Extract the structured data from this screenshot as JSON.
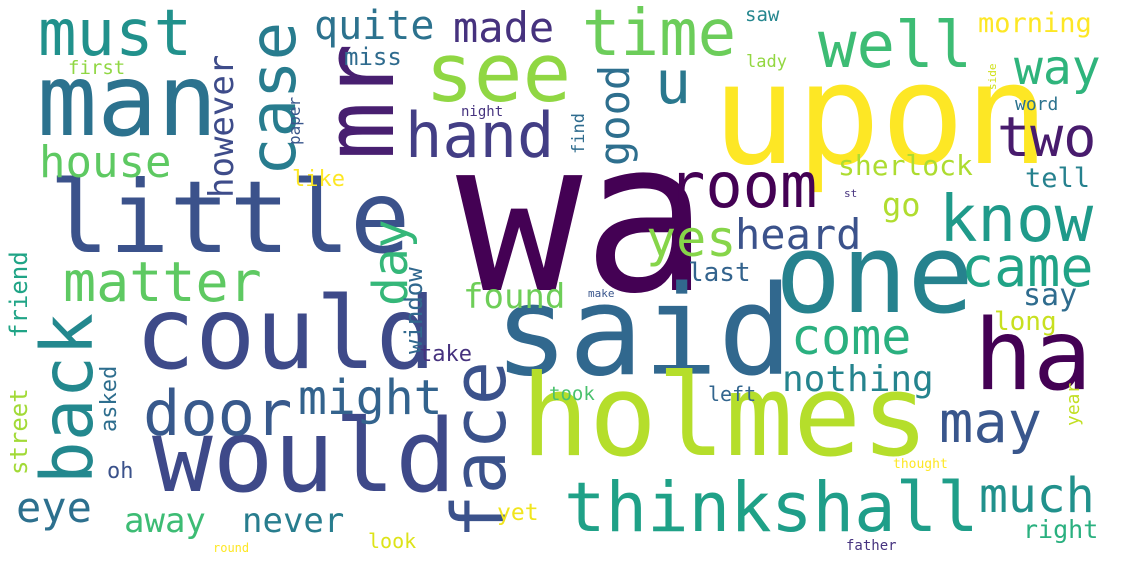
{
  "word_cloud": {
    "colormap": "viridis",
    "background": "#ffffff",
    "words": [
      {
        "text": "wa",
        "color": "#440154"
      },
      {
        "text": "upon",
        "color": "#fde725"
      },
      {
        "text": "said",
        "color": "#31688e"
      },
      {
        "text": "holmes",
        "color": "#b5de2b"
      },
      {
        "text": "one",
        "color": "#26828e"
      },
      {
        "text": "could",
        "color": "#3e4a89"
      },
      {
        "text": "would",
        "color": "#3e4989"
      },
      {
        "text": "man",
        "color": "#2c728e"
      },
      {
        "text": "little",
        "color": "#3b528b"
      },
      {
        "text": "mr",
        "color": "#481f70"
      },
      {
        "text": "ha",
        "color": "#440154"
      },
      {
        "text": "see",
        "color": "#90d743"
      },
      {
        "text": "think",
        "color": "#1fa187"
      },
      {
        "text": "shall",
        "color": "#1f9e89"
      },
      {
        "text": "face",
        "color": "#3b528b"
      },
      {
        "text": "back",
        "color": "#23888e"
      },
      {
        "text": "must",
        "color": "#21918c"
      },
      {
        "text": "time",
        "color": "#6ccd5a"
      },
      {
        "text": "well",
        "color": "#3dbc74"
      },
      {
        "text": "know",
        "color": "#1f9a8a"
      },
      {
        "text": "case",
        "color": "#287c8e"
      },
      {
        "text": "hand",
        "color": "#433e85"
      },
      {
        "text": "room",
        "color": "#440154"
      },
      {
        "text": "door",
        "color": "#38598c"
      },
      {
        "text": "came",
        "color": "#20a386"
      },
      {
        "text": "may",
        "color": "#39568c"
      },
      {
        "text": "matter",
        "color": "#5ec962"
      },
      {
        "text": "two",
        "color": "#481b6d"
      },
      {
        "text": "u",
        "color": "#2a788e"
      },
      {
        "text": "day",
        "color": "#35b779"
      },
      {
        "text": "come",
        "color": "#2ab07f"
      },
      {
        "text": "might",
        "color": "#33638d"
      },
      {
        "text": "much",
        "color": "#21918c"
      },
      {
        "text": "house",
        "color": "#5ec962"
      },
      {
        "text": "made",
        "color": "#46327e"
      },
      {
        "text": "heard",
        "color": "#3b528b"
      },
      {
        "text": "way",
        "color": "#2fb47c"
      },
      {
        "text": "yes",
        "color": "#86d549"
      },
      {
        "text": "good",
        "color": "#2e6f8e"
      },
      {
        "text": "eye",
        "color": "#2d708e"
      },
      {
        "text": "quite",
        "color": "#2c728e"
      },
      {
        "text": "nothing",
        "color": "#25848e"
      },
      {
        "text": "never",
        "color": "#287d8e"
      },
      {
        "text": "away",
        "color": "#3dbc74"
      },
      {
        "text": "found",
        "color": "#6ece58"
      },
      {
        "text": "however",
        "color": "#3e4c8a"
      },
      {
        "text": "go",
        "color": "#b0dd2f"
      },
      {
        "text": "sherlock",
        "color": "#addc30"
      },
      {
        "text": "say",
        "color": "#2f6c8e"
      },
      {
        "text": "morning",
        "color": "#fde725"
      },
      {
        "text": "friend",
        "color": "#20a486"
      },
      {
        "text": "street",
        "color": "#a2da37"
      },
      {
        "text": "window",
        "color": "#31688e"
      },
      {
        "text": "last",
        "color": "#33638d"
      },
      {
        "text": "tell",
        "color": "#26818e"
      },
      {
        "text": "right",
        "color": "#2ab07f"
      },
      {
        "text": "long",
        "color": "#c8e020"
      },
      {
        "text": "asked",
        "color": "#2e6e8e"
      },
      {
        "text": "take",
        "color": "#46327e"
      },
      {
        "text": "miss",
        "color": "#2f6b8e"
      },
      {
        "text": "like",
        "color": "#fde725"
      },
      {
        "text": "yet",
        "color": "#f1e51d"
      },
      {
        "text": "oh",
        "color": "#3b528b"
      },
      {
        "text": "year",
        "color": "#c2df23"
      },
      {
        "text": "took",
        "color": "#4ac16d"
      },
      {
        "text": "left",
        "color": "#32658e"
      },
      {
        "text": "look",
        "color": "#dde318"
      },
      {
        "text": "saw",
        "color": "#24868e"
      },
      {
        "text": "find",
        "color": "#2f6c8e"
      },
      {
        "text": "paper",
        "color": "#39568c"
      },
      {
        "text": "word",
        "color": "#2c738e"
      },
      {
        "text": "first",
        "color": "#90d743"
      },
      {
        "text": "lady",
        "color": "#93d741"
      },
      {
        "text": "night",
        "color": "#46337f"
      },
      {
        "text": "make",
        "color": "#39558c"
      },
      {
        "text": "side",
        "color": "#d0e11c"
      },
      {
        "text": "st",
        "color": "#46327e"
      },
      {
        "text": "thought",
        "color": "#fde725"
      },
      {
        "text": "round",
        "color": "#fde725"
      },
      {
        "text": "father",
        "color": "#46337f"
      }
    ]
  }
}
